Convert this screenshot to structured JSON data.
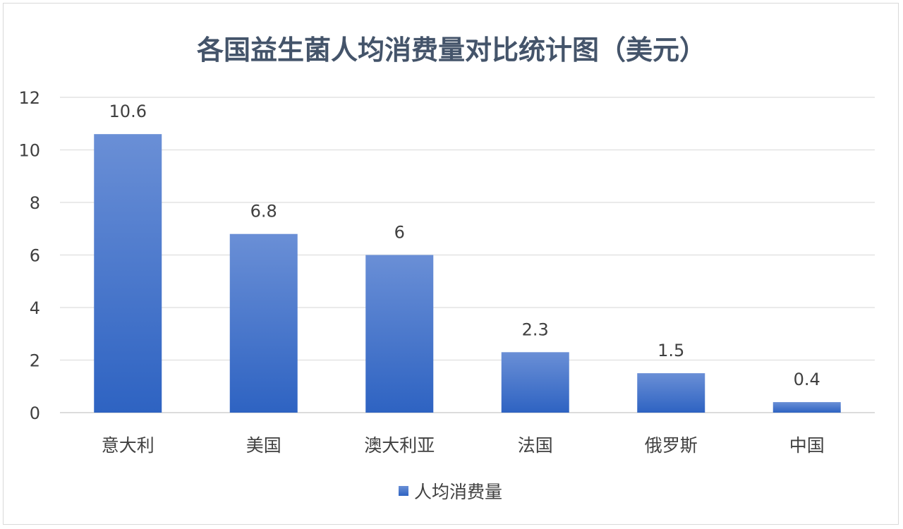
{
  "chart_data": {
    "type": "bar",
    "title": "各国益生菌人均消费量对比统计图（美元）",
    "categories": [
      "意大利",
      "美国",
      "澳大利亚",
      "法国",
      "俄罗斯",
      "中国"
    ],
    "series": [
      {
        "name": "人均消费量",
        "values": [
          10.6,
          6.8,
          6,
          2.3,
          1.5,
          0.4
        ],
        "data_labels": [
          "10.6",
          "6.8",
          "6",
          "2.3",
          "1.5",
          "0.4"
        ]
      }
    ],
    "ylim": [
      0,
      12
    ],
    "yticks": [
      0,
      2,
      4,
      6,
      8,
      10,
      12
    ],
    "grid": true,
    "legend_position": "bottom",
    "colors": {
      "bar_top": "#6a8fd6",
      "bar_bottom": "#2e63c2",
      "grid": "#e3e3e3",
      "title": "#44546a",
      "text": "#404040"
    }
  }
}
